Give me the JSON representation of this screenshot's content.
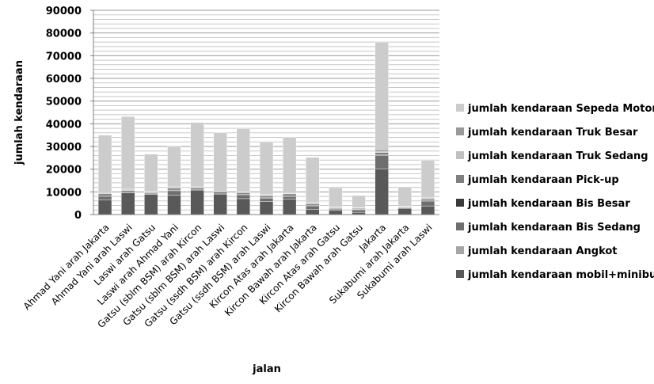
{
  "chart_data": {
    "type": "bar",
    "stacked": true,
    "title": "",
    "xlabel": "jalan",
    "ylabel": "jumlah kendaraan",
    "ylim": [
      0,
      90000
    ],
    "yticks": [
      "0",
      "10000",
      "20000",
      "30000",
      "40000",
      "50000",
      "60000",
      "70000",
      "80000",
      "90000"
    ],
    "grid": true,
    "legend_position": "right",
    "categories": [
      "Ahmad Yani arah Jakarta",
      "Ahmad Yani arah Laswi",
      "Laswi arah Gatsu",
      "Laswi arah Ahmad Yani",
      "Gatsu (sblm BSM) arah Kircon",
      "Gatsu (sblm BSM) arah Laswi",
      "Gatsu (ssdh BSM) arah Kircon",
      "Gatsu (ssdh BSM) arah Laswi",
      "Kircon Atas arah Jakarta",
      "Kircon Bawah arah Jakarta",
      "Kircon Atas arah Gatsu",
      "Kircon Bawah arah Gatsu",
      "Jakarta",
      "Sukabumi arah Jakarta",
      "Sukabumi arah Laswi"
    ],
    "series": [
      {
        "name": "jumlah kendaraan mobil+minibus",
        "color": "#595959",
        "values": [
          6500,
          9500,
          8800,
          8500,
          10800,
          9000,
          7000,
          5700,
          6800,
          2300,
          1800,
          1000,
          20200,
          2600,
          3800
        ]
      },
      {
        "name": "jumlah kendaraan Angkot",
        "color": "#a6a6a6",
        "values": [
          0,
          0,
          0,
          0,
          0,
          0,
          0,
          0,
          0,
          0,
          0,
          0,
          0,
          0,
          0
        ]
      },
      {
        "name": "jumlah kendaraan Bis Sedang",
        "color": "#6e6e6e",
        "values": [
          1500,
          0,
          0,
          2000,
          0,
          0,
          1500,
          1500,
          1200,
          1300,
          600,
          1100,
          5800,
          0,
          1900
        ]
      },
      {
        "name": "jumlah kendaraan Bis Besar",
        "color": "#3a3a3a",
        "values": [
          400,
          300,
          300,
          300,
          300,
          300,
          300,
          300,
          300,
          300,
          200,
          200,
          300,
          300,
          300
        ]
      },
      {
        "name": "jumlah kendaraan Pick-up",
        "color": "#808080",
        "values": [
          800,
          800,
          600,
          800,
          700,
          800,
          800,
          800,
          800,
          800,
          400,
          400,
          1000,
          300,
          800
        ]
      },
      {
        "name": "jumlah kendaraan Truk Sedang",
        "color": "#c0c0c0",
        "values": [
          400,
          300,
          200,
          400,
          300,
          300,
          300,
          300,
          300,
          300,
          200,
          200,
          400,
          200,
          300
        ]
      },
      {
        "name": "jumlah kendaraan Truk Besar",
        "color": "#999999",
        "values": [
          400,
          300,
          200,
          400,
          300,
          300,
          300,
          200,
          300,
          300,
          200,
          200,
          800,
          200,
          300
        ]
      },
      {
        "name": "jumlah kendaraan Sepeda Motor",
        "color": "#cccccc",
        "values": [
          25000,
          32000,
          16500,
          17600,
          28200,
          25300,
          27700,
          23200,
          24300,
          19900,
          8400,
          5300,
          47500,
          8600,
          16600
        ]
      }
    ]
  }
}
